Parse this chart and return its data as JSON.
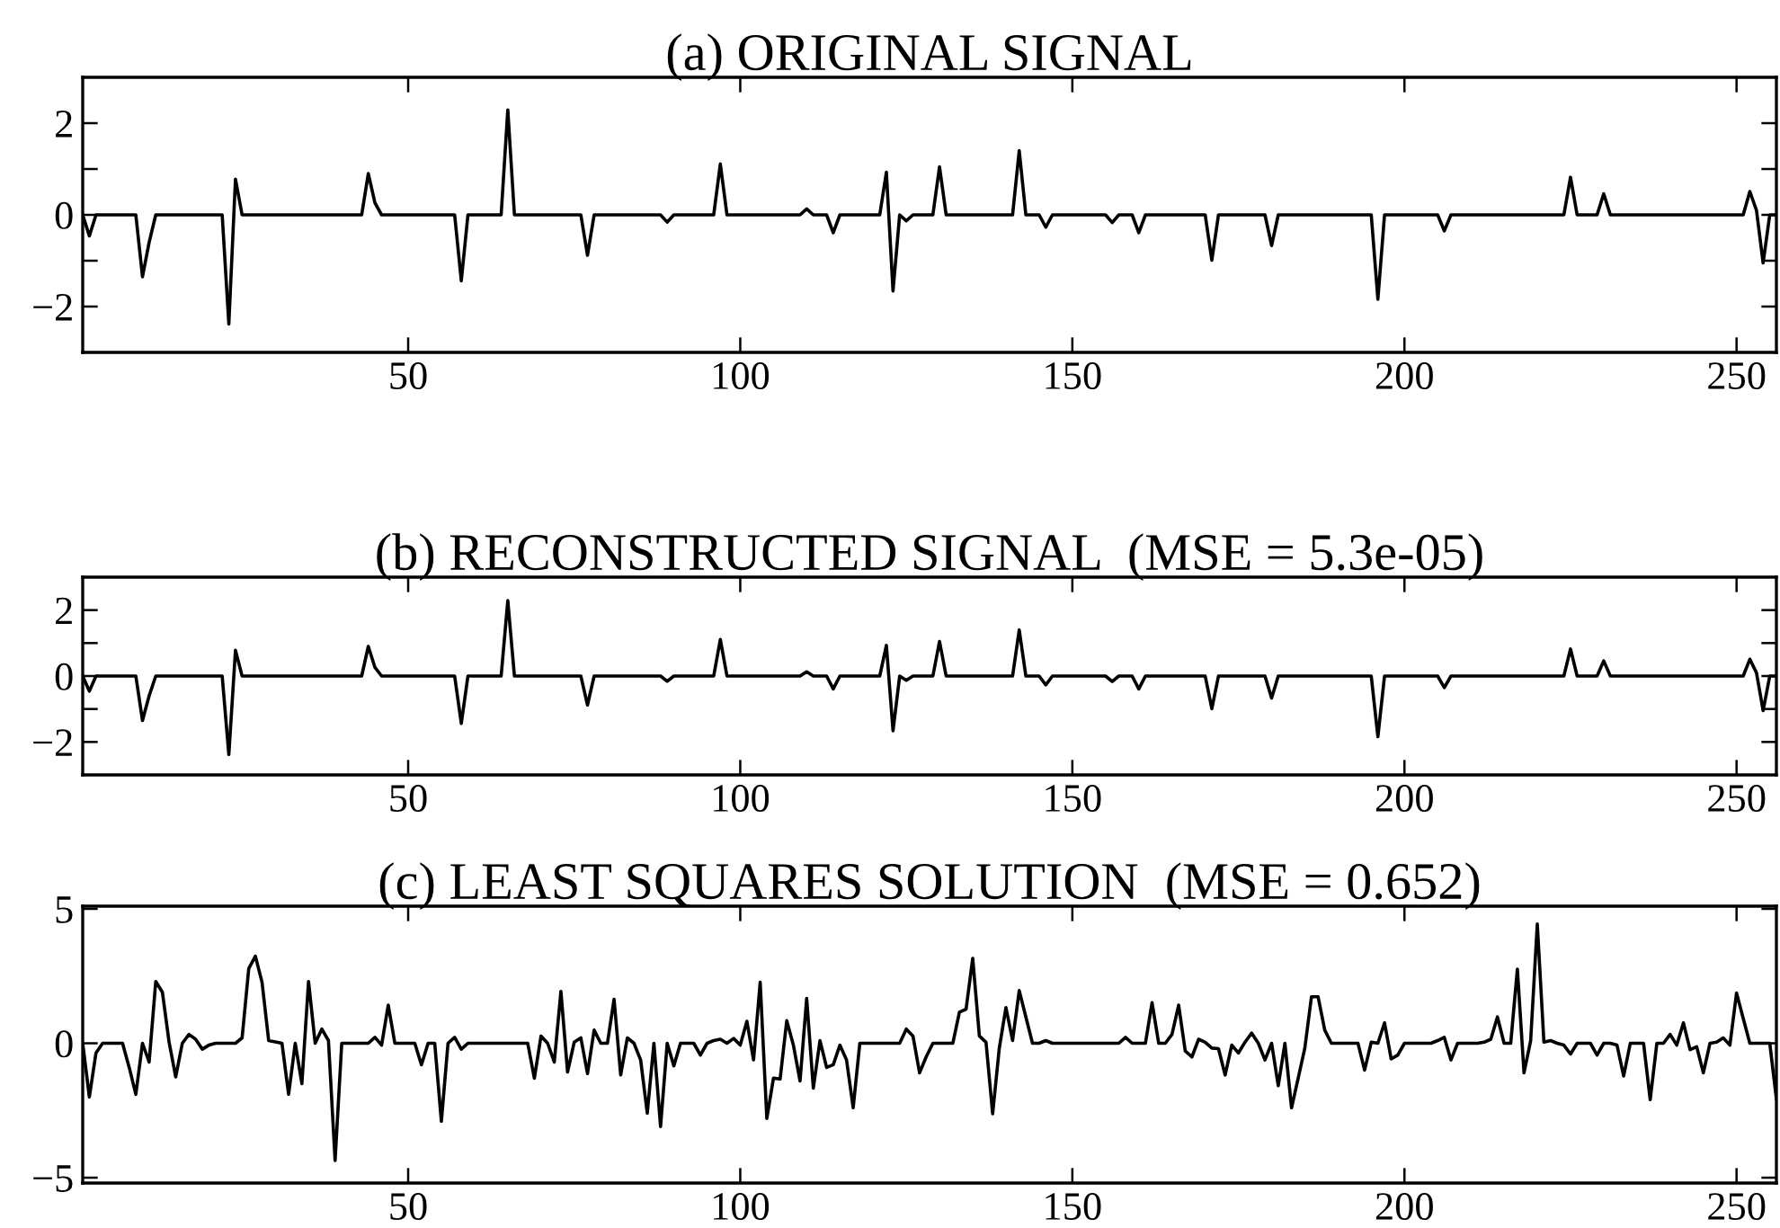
{
  "chart_data": [
    {
      "type": "line",
      "title": "(a) ORIGINAL SIGNAL",
      "color": "#000000",
      "xlim": [
        1,
        256
      ],
      "xticks": [
        50,
        100,
        150,
        200,
        250
      ],
      "ylim": [
        -3,
        3
      ],
      "yticks": [
        {
          "value": -2,
          "label": "−2"
        },
        {
          "value": -1,
          "label": null
        },
        0,
        {
          "value": 1,
          "label": null
        },
        2
      ],
      "x": [
        1,
        2,
        3,
        9,
        10,
        11,
        12,
        22,
        23,
        24,
        25,
        43,
        44,
        45,
        46,
        57,
        58,
        59,
        64,
        65,
        66,
        76,
        77,
        78,
        88,
        89,
        90,
        96,
        97,
        98,
        109,
        110,
        111,
        113,
        114,
        115,
        121,
        122,
        123,
        124,
        125,
        126,
        129,
        130,
        131,
        141,
        142,
        143,
        145,
        146,
        147,
        155,
        156,
        157,
        159,
        160,
        161,
        170,
        171,
        172,
        179,
        180,
        181,
        195,
        196,
        197,
        205,
        206,
        207,
        224,
        225,
        226,
        229,
        230,
        231,
        251,
        252,
        253,
        254,
        255,
        256
      ],
      "values": [
        0,
        -0.46,
        0,
        0,
        -1.35,
        -0.6,
        0,
        0,
        -2.38,
        0.78,
        0,
        0,
        0.9,
        0.26,
        0,
        0,
        -1.44,
        0,
        0,
        2.29,
        0,
        0,
        -0.88,
        0,
        0,
        -0.16,
        0,
        0,
        1.11,
        0,
        0,
        0.13,
        0,
        0,
        -0.39,
        0,
        0,
        0.93,
        -1.66,
        0,
        -0.13,
        0,
        0,
        1.05,
        0,
        0,
        1.4,
        0,
        0,
        -0.27,
        0,
        0,
        -0.17,
        0,
        0,
        -0.39,
        0,
        0,
        -0.99,
        0,
        0,
        -0.67,
        0,
        0,
        -1.84,
        0,
        0,
        -0.35,
        0,
        0,
        0.82,
        0,
        0,
        0.46,
        0,
        0,
        0.51,
        0.1,
        -1.05,
        0,
        0
      ]
    },
    {
      "type": "line",
      "title": "(b) RECONSTRUCTED SIGNAL  (MSE = 5.3e-05)",
      "color": "#000000",
      "xlim": [
        1,
        256
      ],
      "xticks": [
        50,
        100,
        150,
        200,
        250
      ],
      "ylim": [
        -3,
        3
      ],
      "yticks": [
        {
          "value": -2,
          "label": "−2"
        },
        {
          "value": -1,
          "label": null
        },
        0,
        {
          "value": 1,
          "label": null
        },
        2
      ],
      "x": [
        1,
        2,
        3,
        9,
        10,
        11,
        12,
        22,
        23,
        24,
        25,
        43,
        44,
        45,
        46,
        57,
        58,
        59,
        64,
        65,
        66,
        76,
        77,
        78,
        88,
        89,
        90,
        96,
        97,
        98,
        109,
        110,
        111,
        113,
        114,
        115,
        121,
        122,
        123,
        124,
        125,
        126,
        129,
        130,
        131,
        141,
        142,
        143,
        145,
        146,
        147,
        155,
        156,
        157,
        159,
        160,
        161,
        170,
        171,
        172,
        179,
        180,
        181,
        195,
        196,
        197,
        205,
        206,
        207,
        224,
        225,
        226,
        229,
        230,
        231,
        251,
        252,
        253,
        254,
        255,
        256
      ],
      "values": [
        0,
        -0.46,
        0,
        0,
        -1.35,
        -0.6,
        0,
        0,
        -2.38,
        0.78,
        0,
        0,
        0.9,
        0.26,
        0,
        0,
        -1.44,
        0,
        0,
        2.29,
        0,
        0,
        -0.88,
        0,
        0,
        -0.16,
        0,
        0,
        1.11,
        0,
        0,
        0.13,
        0,
        0,
        -0.39,
        0,
        0,
        0.93,
        -1.66,
        0,
        -0.13,
        0,
        0,
        1.05,
        0,
        0,
        1.4,
        0,
        0,
        -0.27,
        0,
        0,
        -0.17,
        0,
        0,
        -0.39,
        0,
        0,
        -0.99,
        0,
        0,
        -0.67,
        0,
        0,
        -1.84,
        0,
        0,
        -0.35,
        0,
        0,
        0.82,
        0,
        0,
        0.46,
        0,
        0,
        0.51,
        0.1,
        -1.05,
        0,
        0
      ]
    },
    {
      "type": "line",
      "title": "(c) LEAST SQUARES SOLUTION  (MSE = 0.652)",
      "color": "#000000",
      "xlim": [
        1,
        256
      ],
      "xticks": [
        50,
        100,
        150,
        200,
        250
      ],
      "ylim": [
        -5.2,
        5.1
      ],
      "yticks": [
        {
          "value": -5,
          "label": "−5"
        },
        0,
        5
      ],
      "x": [
        1,
        2,
        3,
        4,
        7,
        8,
        9,
        10,
        11,
        12,
        13,
        14,
        15,
        16,
        17,
        18,
        19,
        20,
        21,
        24,
        25,
        26,
        27,
        28,
        29,
        31,
        32,
        33,
        34,
        35,
        36,
        37,
        38,
        39,
        40,
        44,
        45,
        46,
        47,
        48,
        51,
        52,
        53,
        54,
        55,
        56,
        57,
        58,
        59,
        68,
        69,
        70,
        71,
        72,
        73,
        74,
        75,
        76,
        77,
        78,
        79,
        80,
        81,
        82,
        83,
        84,
        85,
        86,
        87,
        88,
        89,
        90,
        91,
        93,
        94,
        95,
        96,
        97,
        98,
        99,
        100,
        101,
        102,
        103,
        104,
        105,
        106,
        107,
        108,
        109,
        110,
        111,
        112,
        113,
        114,
        115,
        116,
        117,
        118,
        124,
        125,
        126,
        127,
        128,
        129,
        132,
        133,
        134,
        135,
        136,
        137,
        138,
        139,
        140,
        141,
        142,
        143,
        144,
        145,
        146,
        147,
        157,
        158,
        159,
        161,
        162,
        163,
        164,
        165,
        166,
        167,
        168,
        169,
        170,
        171,
        172,
        173,
        174,
        175,
        176,
        177,
        178,
        179,
        180,
        181,
        182,
        183,
        184,
        185,
        186,
        187,
        188,
        189,
        193,
        194,
        195,
        196,
        197,
        198,
        199,
        200,
        204,
        205,
        206,
        207,
        208,
        211,
        212,
        213,
        214,
        215,
        216,
        217,
        218,
        219,
        220,
        221,
        222,
        223,
        224,
        225,
        226,
        228,
        229,
        230,
        231,
        232,
        233,
        234,
        236,
        237,
        238,
        239,
        240,
        241,
        242,
        243,
        244,
        245,
        246,
        247,
        248,
        249,
        250,
        251,
        252,
        255,
        256
      ],
      "values": [
        0,
        -2.0,
        -0.36,
        0,
        0,
        -0.9,
        -1.9,
        0,
        -0.7,
        2.3,
        1.9,
        0.05,
        -1.25,
        0,
        0.33,
        0.15,
        -0.22,
        -0.07,
        0,
        0,
        0.2,
        2.78,
        3.24,
        2.27,
        0.1,
        0,
        -1.9,
        0,
        -1.5,
        2.3,
        0,
        0.53,
        0.1,
        -4.36,
        0,
        0,
        0.22,
        -0.07,
        1.42,
        0,
        0,
        -0.8,
        0,
        0,
        -2.9,
        0,
        0.22,
        -0.22,
        0,
        0,
        -1.3,
        0.27,
        0,
        -0.7,
        1.93,
        -1.07,
        0.04,
        0.2,
        -1.13,
        0.49,
        0,
        0,
        1.64,
        -1.18,
        0.2,
        0,
        -0.62,
        -2.6,
        0,
        -3.1,
        0,
        -0.84,
        0,
        0,
        -0.44,
        0,
        0.1,
        0.15,
        0,
        0.18,
        -0.07,
        0.82,
        -0.62,
        2.27,
        -2.8,
        -1.3,
        -1.33,
        0.84,
        -0.07,
        -1.4,
        1.67,
        -1.67,
        0.1,
        -0.9,
        -0.8,
        -0.07,
        -0.62,
        -2.4,
        0,
        0,
        0.53,
        0.27,
        -1.1,
        -0.5,
        0,
        0,
        1.16,
        1.27,
        3.16,
        0.27,
        0.04,
        -2.62,
        -0.18,
        1.33,
        0.1,
        1.96,
        0.98,
        0,
        0,
        0.1,
        0,
        0,
        0.22,
        0,
        0,
        1.51,
        0,
        0,
        0.33,
        1.42,
        -0.29,
        -0.51,
        0.15,
        0.04,
        -0.18,
        -0.2,
        -1.18,
        -0.07,
        -0.36,
        0.04,
        0.38,
        0,
        -0.62,
        0,
        -1.58,
        0,
        -2.4,
        -1.3,
        -0.18,
        1.73,
        1.73,
        0.49,
        0,
        0,
        -1.0,
        0.04,
        0,
        0.76,
        -0.58,
        -0.44,
        0,
        0,
        0.1,
        0.22,
        -0.62,
        0,
        0,
        0.04,
        0.15,
        0.98,
        0,
        0,
        2.76,
        -1.1,
        0.1,
        4.44,
        0.04,
        0.1,
        0,
        -0.07,
        -0.4,
        0,
        0,
        -0.44,
        0,
        0,
        -0.07,
        -1.22,
        0,
        0,
        -2.1,
        0,
        0,
        0.33,
        -0.07,
        0.76,
        -0.24,
        -0.13,
        -1.1,
        0,
        0.04,
        0.2,
        -0.07,
        1.87,
        0.93,
        0,
        0,
        -2.07
      ]
    }
  ]
}
